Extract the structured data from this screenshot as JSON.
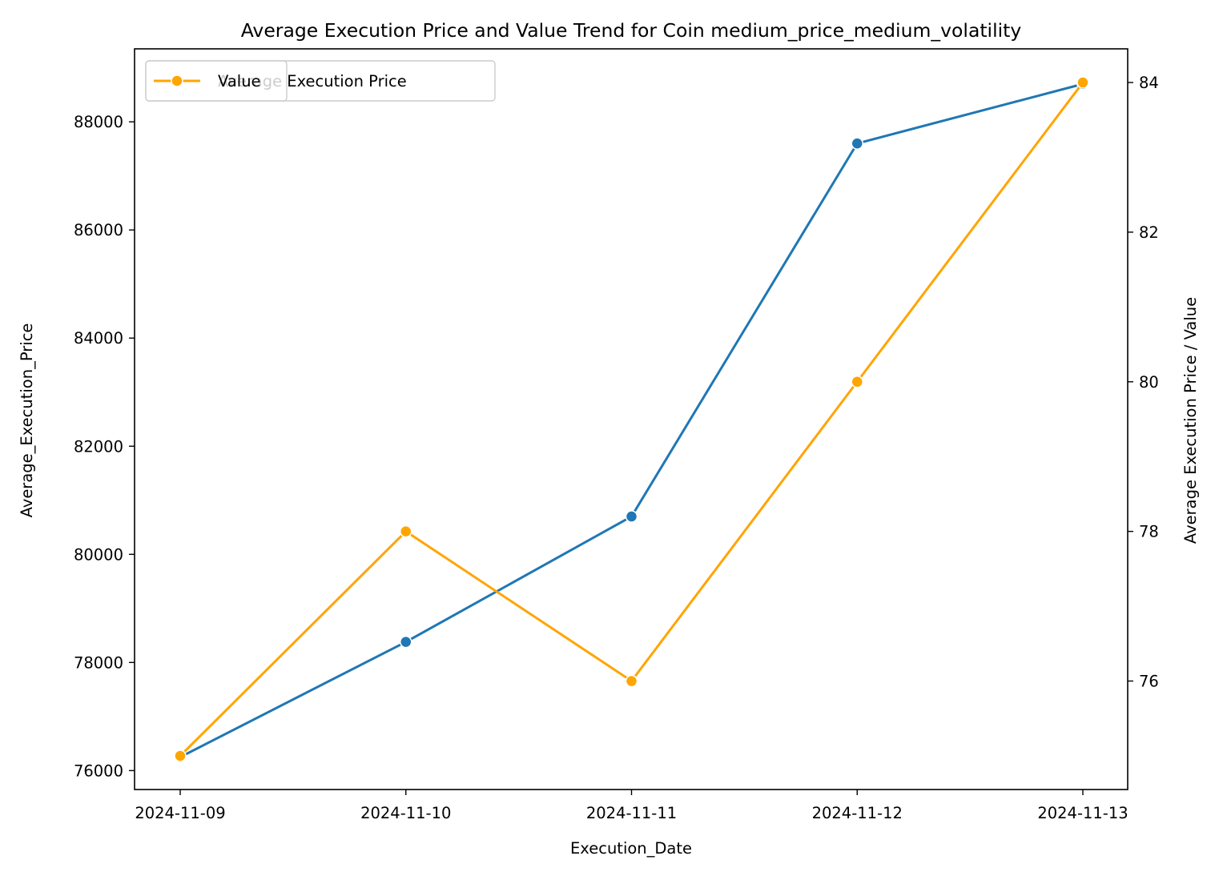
{
  "chart_data": {
    "type": "line",
    "title": "Average Execution Price and Value Trend for Coin medium_price_medium_volatility",
    "xlabel": "Execution_Date",
    "ylabel": "Average_Execution_Price",
    "ylabel_right": "Average Execution Price / Value",
    "categories": [
      "2024-11-09",
      "2024-11-10",
      "2024-11-11",
      "2024-11-12",
      "2024-11-13"
    ],
    "left_axis": {
      "ylim": [
        75650,
        89350
      ],
      "ticks": [
        "76000",
        "78000",
        "80000",
        "82000",
        "84000",
        "86000",
        "88000"
      ]
    },
    "right_axis": {
      "ylim": [
        74.55,
        84.45
      ],
      "ticks": [
        "76",
        "78",
        "80",
        "82",
        "84"
      ]
    },
    "series": [
      {
        "axis": "left",
        "color": "#1f77b4",
        "marker": "circle",
        "values": [
          76250,
          78380,
          80700,
          87600,
          88700
        ]
      },
      {
        "axis": "right",
        "name": "Value",
        "color": "#ffa500",
        "marker": "circle",
        "values": [
          75,
          78,
          76,
          80,
          84
        ]
      }
    ],
    "legends": [
      {
        "placement": "upper-left",
        "entries": [
          "Average Execution Price"
        ]
      },
      {
        "placement": "upper-left",
        "entries": [
          "Value"
        ]
      }
    ],
    "grid": false
  }
}
